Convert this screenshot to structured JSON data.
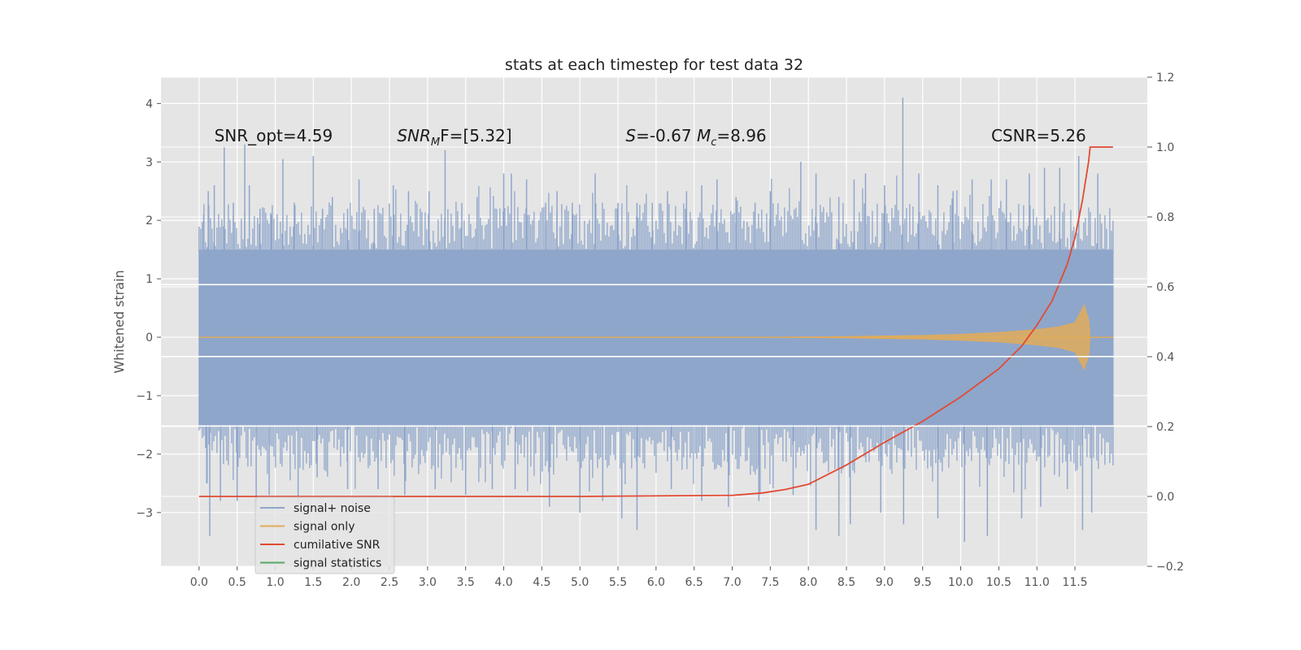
{
  "chart_data": {
    "type": "line",
    "title": "stats at each timestep for test data 32",
    "ylabel": "Whitened strain",
    "y2label": "",
    "xlim": [
      -0.5,
      12.45
    ],
    "ylim": [
      -3.92,
      4.45
    ],
    "y2lim": [
      -0.2,
      1.2
    ],
    "x_ticks": [
      0.0,
      0.5,
      1.0,
      1.5,
      2.0,
      2.5,
      3.0,
      3.5,
      4.0,
      4.5,
      5.0,
      5.5,
      6.0,
      6.5,
      7.0,
      7.5,
      8.0,
      8.5,
      9.0,
      9.5,
      10.0,
      10.5,
      11.0,
      11.5
    ],
    "x_tick_labels": [
      "0.0",
      "0.5",
      "1.0",
      "1.5",
      "2.0",
      "2.5",
      "3.0",
      "3.5",
      "4.0",
      "4.5",
      "5.0",
      "5.5",
      "6.0",
      "6.5",
      "7.0",
      "7.5",
      "8.0",
      "8.5",
      "9.0",
      "9.5",
      "10.0",
      "10.5",
      "11.0",
      "11.5"
    ],
    "y_ticks": [
      -3,
      -2,
      -1,
      0,
      1,
      2,
      3,
      4
    ],
    "y_tick_labels": [
      "−3",
      "−2",
      "−1",
      "0",
      "1",
      "2",
      "3",
      "4"
    ],
    "y2_ticks": [
      -0.2,
      0.0,
      0.2,
      0.4,
      0.6,
      0.8,
      1.0,
      1.2
    ],
    "y2_tick_labels": [
      "−0.2",
      "0.0",
      "0.2",
      "0.4",
      "0.6",
      "0.8",
      "1.0",
      "1.2"
    ],
    "grid": true,
    "legend_position": "lower-left",
    "series": [
      {
        "name": "signal+ noise",
        "axis": "left",
        "color": "#8fa6cb",
        "x_range": [
          0.0,
          12.0
        ],
        "dense_band": [
          -1.5,
          1.5
        ],
        "peaks_x": [
          0.06,
          0.12,
          0.2,
          0.33,
          0.45,
          0.6,
          0.66,
          0.8,
          0.95,
          1.1,
          1.25,
          1.5,
          1.62,
          1.75,
          1.95,
          2.1,
          2.3,
          2.55,
          2.75,
          3.02,
          3.23,
          3.45,
          3.65,
          4.0,
          4.1,
          4.3,
          4.55,
          4.7,
          4.9,
          5.2,
          5.5,
          5.75,
          5.95,
          6.15,
          6.4,
          6.6,
          6.8,
          7.05,
          7.3,
          7.5,
          7.9,
          8.1,
          8.4,
          8.6,
          8.75,
          9.0,
          9.24,
          9.45,
          9.7,
          9.9,
          10.15,
          10.4,
          10.6,
          10.9,
          11.1,
          11.3,
          11.55,
          11.8
        ],
        "peaks_y": [
          2.1,
          2.5,
          2.6,
          3.25,
          2.3,
          3.3,
          2.6,
          2.2,
          2.1,
          3.05,
          2.3,
          3.1,
          2.2,
          2.4,
          2.2,
          2.7,
          2.2,
          2.6,
          2.5,
          2.5,
          3.2,
          2.3,
          2.4,
          2.8,
          2.8,
          2.7,
          2.3,
          2.5,
          2.3,
          2.8,
          2.3,
          2.3,
          2.3,
          2.5,
          2.5,
          2.6,
          2.7,
          2.4,
          2.3,
          2.5,
          3.0,
          2.8,
          2.4,
          2.7,
          2.8,
          2.6,
          4.1,
          2.8,
          2.6,
          2.5,
          2.7,
          2.7,
          2.7,
          2.8,
          2.9,
          2.9,
          3.1,
          2.8
        ],
        "troughs_x": [
          0.1,
          0.14,
          0.28,
          0.5,
          0.75,
          0.92,
          1.3,
          1.55,
          1.95,
          2.35,
          2.7,
          3.1,
          3.5,
          3.85,
          4.15,
          4.6,
          5.0,
          5.3,
          5.55,
          5.75,
          6.2,
          6.6,
          6.95,
          7.35,
          7.8,
          8.1,
          8.4,
          8.55,
          8.95,
          9.25,
          9.7,
          10.05,
          10.35,
          10.8,
          11.05,
          11.4,
          11.6,
          11.72
        ],
        "troughs_y": [
          -2.5,
          -3.4,
          -2.8,
          -2.8,
          -2.9,
          -2.7,
          -2.9,
          -2.4,
          -2.6,
          -2.6,
          -2.7,
          -2.6,
          -2.7,
          -2.6,
          -2.6,
          -2.9,
          -3.0,
          -2.8,
          -3.1,
          -3.3,
          -2.6,
          -2.8,
          -2.9,
          -2.8,
          -2.7,
          -3.3,
          -3.4,
          -3.2,
          -3.0,
          -3.2,
          -3.1,
          -3.5,
          -3.4,
          -3.1,
          -2.9,
          -2.6,
          -3.3,
          -3.0
        ]
      },
      {
        "name": "signal only",
        "axis": "left",
        "color": "#e0ab5a",
        "x_envelope": [
          0.0,
          7.5,
          8.5,
          9.5,
          10.0,
          10.5,
          11.0,
          11.3,
          11.5,
          11.62,
          11.68,
          11.7,
          12.0
        ],
        "y_envelope": [
          0.0,
          0.0,
          0.01,
          0.03,
          0.05,
          0.08,
          0.13,
          0.18,
          0.25,
          0.55,
          0.3,
          0.0,
          0.0
        ]
      },
      {
        "name": "cumilative SNR",
        "axis": "right",
        "color": "#e24a33",
        "x": [
          0.0,
          5.0,
          7.0,
          7.4,
          7.7,
          8.0,
          8.5,
          9.0,
          9.5,
          10.0,
          10.5,
          10.8,
          11.0,
          11.2,
          11.4,
          11.5,
          11.6,
          11.68,
          11.7,
          12.0
        ],
        "y": [
          0.0,
          0.0,
          0.003,
          0.01,
          0.02,
          0.035,
          0.09,
          0.155,
          0.215,
          0.285,
          0.365,
          0.43,
          0.49,
          0.56,
          0.665,
          0.74,
          0.85,
          0.96,
          1.0,
          1.0
        ]
      },
      {
        "name": "signal statistics",
        "axis": "left",
        "color": "#55a868",
        "x": [],
        "y": []
      }
    ],
    "horizontal_lines_y": [
      0.9,
      -0.33,
      -1.52
    ],
    "annotations": [
      {
        "text": "SNR_opt=4.59",
        "x": 0.2,
        "y": 3.35
      },
      {
        "text": "SNR",
        "text_sub": "M",
        "text_after": "F=[5.32]",
        "x": 2.6,
        "y": 3.35
      },
      {
        "text": "S",
        "text_after": "=-0.67  ",
        "text2": "M",
        "text2_sub": "c",
        "text2_after": "=8.96",
        "x": 5.6,
        "y": 3.35
      },
      {
        "text": "CSNR=5.26",
        "x": 10.4,
        "y": 3.35
      }
    ]
  }
}
